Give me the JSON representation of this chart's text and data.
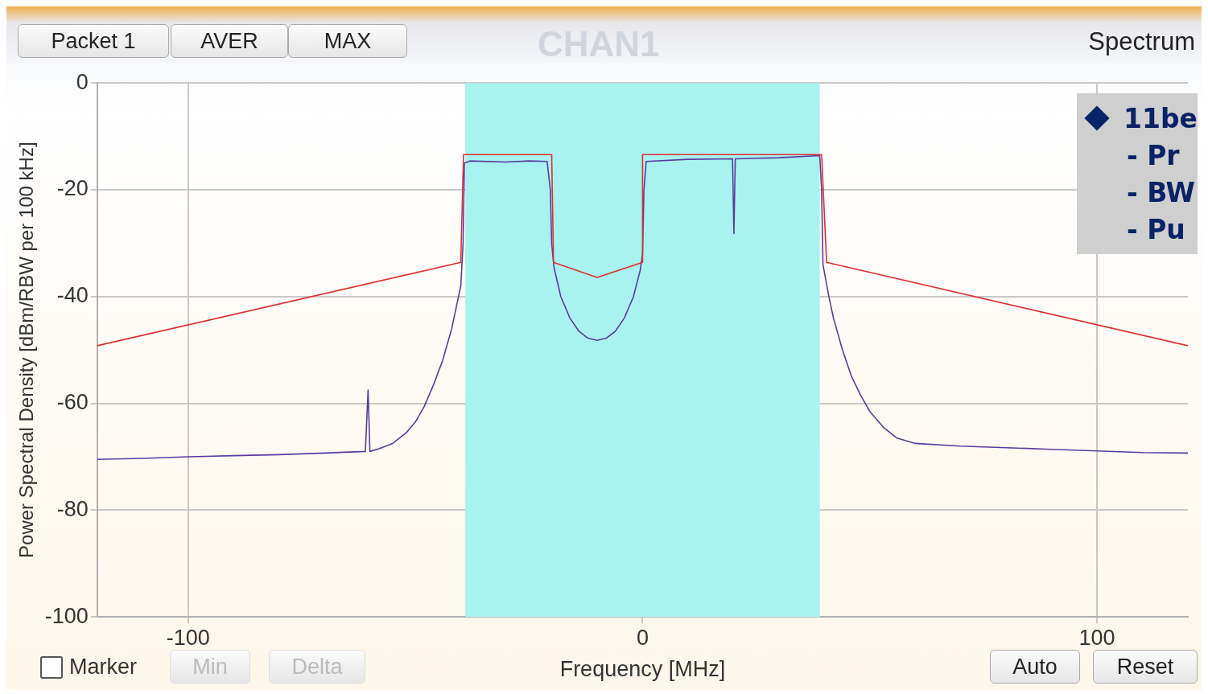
{
  "chart_data": {
    "type": "line",
    "title": "Spectrum",
    "subtitle": "CHAN1",
    "xlabel": "Frequency [MHz]",
    "ylabel": "Power Spectral Density [dBm/RBW per 100 kHz]",
    "xlim": [
      -120,
      120
    ],
    "xticks": [
      -100,
      0,
      100
    ],
    "ylim": [
      -100,
      0
    ],
    "yticks": [
      0,
      -20,
      -40,
      -60,
      -80,
      -100
    ],
    "grid": true,
    "marker": "none",
    "line_style": "solid",
    "bands": [
      {
        "axis": "x",
        "from": -39,
        "to": 39,
        "color": "#a8f2f0"
      }
    ],
    "series": [
      {
        "color": "#e03030",
        "x": [
          -120,
          -40,
          -39.4,
          -20,
          -19.6,
          -10,
          0,
          0,
          39.4,
          40.5,
          120
        ],
        "values": [
          -49.2,
          -33.6,
          -13.4,
          -13.4,
          -33.6,
          -36.4,
          -33.6,
          -13.4,
          -13.4,
          -33.6,
          -49.2
        ]
      },
      {
        "color": "#5b3a9e",
        "x": [
          -120,
          -110,
          -100,
          -90,
          -80,
          -70,
          -61,
          -60.4,
          -60,
          -58,
          -55,
          -52,
          -50,
          -48,
          -46,
          -44,
          -42,
          -41,
          -40,
          -39.5,
          -39.2,
          -38,
          -30,
          -25,
          -21,
          -20.3,
          -20,
          -19.5,
          -18,
          -16,
          -14,
          -12,
          -10,
          -8,
          -6,
          -4,
          -2,
          -0.5,
          0,
          0.3,
          0.8,
          10,
          19.8,
          20.1,
          20.4,
          30,
          39,
          39.4,
          39.7,
          41,
          42,
          44,
          46,
          48,
          50,
          53,
          56,
          60,
          70,
          80,
          90,
          100,
          110,
          120
        ],
        "values": [
          -70.5,
          -70.3,
          -70,
          -69.8,
          -69.6,
          -69.3,
          -69,
          -57.5,
          -69,
          -68.5,
          -67.5,
          -65.5,
          -63.5,
          -60.5,
          -56.5,
          -52,
          -46,
          -42,
          -38,
          -30,
          -15,
          -14.6,
          -14.8,
          -14.6,
          -14.7,
          -20,
          -30,
          -34.5,
          -40,
          -44,
          -46.5,
          -47.8,
          -48.2,
          -47.8,
          -46.5,
          -44,
          -40,
          -35,
          -32,
          -20,
          -14.7,
          -14.3,
          -14.2,
          -28.2,
          -14.2,
          -14,
          -13.6,
          -20,
          -34,
          -40,
          -44,
          -50,
          -55,
          -58.5,
          -61.5,
          -64.5,
          -66.5,
          -67.5,
          -68,
          -68.3,
          -68.6,
          -68.9,
          -69.2,
          -69.3
        ]
      }
    ],
    "annotations": [
      "Packet 1",
      "AVER",
      "MAX",
      "Marker",
      "Min",
      "Delta",
      "Auto",
      "Reset",
      "11be",
      "- Pr",
      "- BW",
      "- Pu"
    ]
  }
}
